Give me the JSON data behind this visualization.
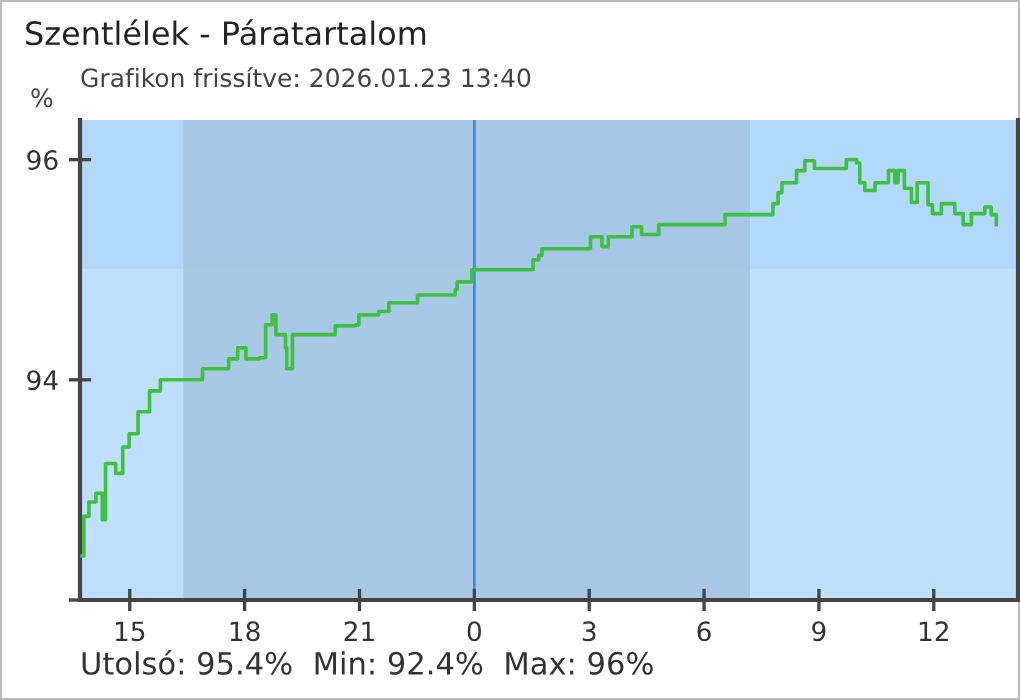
{
  "chart_data": {
    "type": "step",
    "title": "Szentlélek - Páratartalom",
    "subtitle": "Grafikon frissítve: 2026.01.23 13:40",
    "ylabel": "%",
    "annotations": [
      "Utolsó: 95.4%  Min: 92.4%  Max: 96%"
    ],
    "series": [
      {
        "color": "#40c040",
        "x": [
          "2026-01-22T13:45",
          "2026-01-22T13:48",
          "2026-01-22T13:56",
          "2026-01-22T14:07",
          "2026-01-22T14:17",
          "2026-01-22T14:22",
          "2026-01-22T14:38",
          "2026-01-22T14:49",
          "2026-01-22T14:59",
          "2026-01-22T15:13",
          "2026-01-22T15:31",
          "2026-01-22T15:48",
          "2026-01-22T16:49",
          "2026-01-22T16:54",
          "2026-01-22T17:35",
          "2026-01-22T17:49",
          "2026-01-22T18:02",
          "2026-01-22T18:23",
          "2026-01-22T18:33",
          "2026-01-22T18:43",
          "2026-01-22T18:49",
          "2026-01-22T19:04",
          "2026-01-22T19:06",
          "2026-01-22T19:15",
          "2026-01-22T20:17",
          "2026-01-22T20:22",
          "2026-01-22T20:54",
          "2026-01-22T20:59",
          "2026-01-22T21:30",
          "2026-01-22T21:46",
          "2026-01-22T22:31",
          "2026-01-22T23:30",
          "2026-01-22T23:33",
          "2026-01-22T23:56",
          "2026-01-23T01:30",
          "2026-01-23T01:32",
          "2026-01-23T01:41",
          "2026-01-23T01:46",
          "2026-01-23T02:59",
          "2026-01-23T03:02",
          "2026-01-23T03:20",
          "2026-01-23T03:30",
          "2026-01-23T04:02",
          "2026-01-23T04:07",
          "2026-01-23T04:22",
          "2026-01-23T04:43",
          "2026-01-23T04:49",
          "2026-01-23T06:17",
          "2026-01-23T06:33",
          "2026-01-23T07:41",
          "2026-01-23T07:48",
          "2026-01-23T07:56",
          "2026-01-23T08:02",
          "2026-01-23T08:22",
          "2026-01-23T08:25",
          "2026-01-23T08:38",
          "2026-01-23T08:53",
          "2026-01-23T09:40",
          "2026-01-23T09:43",
          "2026-01-23T09:59",
          "2026-01-23T10:04",
          "2026-01-23T10:12",
          "2026-01-23T10:28",
          "2026-01-23T10:49",
          "2026-01-23T10:59",
          "2026-01-23T11:04",
          "2026-01-23T11:14",
          "2026-01-23T11:25",
          "2026-01-23T11:34",
          "2026-01-23T11:51",
          "2026-01-23T11:58",
          "2026-01-23T12:12",
          "2026-01-23T12:33",
          "2026-01-23T12:46",
          "2026-01-23T12:59",
          "2026-01-23T13:20",
          "2026-01-23T13:30",
          "2026-01-23T13:38"
        ],
        "values": [
          92.4,
          92.76,
          92.89,
          92.97,
          92.73,
          93.24,
          93.15,
          93.39,
          93.51,
          93.71,
          93.9,
          94.0,
          94.0,
          94.1,
          94.19,
          94.29,
          94.19,
          94.2,
          94.5,
          94.59,
          94.41,
          94.29,
          94.1,
          94.41,
          94.41,
          94.49,
          94.5,
          94.59,
          94.62,
          94.7,
          94.77,
          94.82,
          94.89,
          95.0,
          95.0,
          95.09,
          95.13,
          95.19,
          95.19,
          95.3,
          95.21,
          95.3,
          95.3,
          95.39,
          95.32,
          95.32,
          95.41,
          95.41,
          95.5,
          95.5,
          95.6,
          95.7,
          95.79,
          95.79,
          95.9,
          95.99,
          95.92,
          95.92,
          96.0,
          95.97,
          95.79,
          95.72,
          95.79,
          95.9,
          95.79,
          95.9,
          95.74,
          95.61,
          95.79,
          95.59,
          95.51,
          95.6,
          95.51,
          95.41,
          95.51,
          95.57,
          95.5,
          95.41
        ]
      }
    ],
    "xlim": [
      "2026-01-22T13:42",
      "2026-01-23T14:12"
    ],
    "ylim": [
      92,
      96.36
    ],
    "xticks": [
      {
        "value": "2026-01-22T15:00",
        "label": "15"
      },
      {
        "value": "2026-01-22T18:00",
        "label": "18"
      },
      {
        "value": "2026-01-22T21:00",
        "label": "21"
      },
      {
        "value": "2026-01-23T00:00",
        "label": "0"
      },
      {
        "value": "2026-01-23T03:00",
        "label": "3"
      },
      {
        "value": "2026-01-23T06:00",
        "label": "6"
      },
      {
        "value": "2026-01-23T09:00",
        "label": "9"
      },
      {
        "value": "2026-01-23T12:00",
        "label": "12"
      }
    ],
    "yticks": [
      {
        "value": 92,
        "label": null
      },
      94,
      96
    ],
    "bands": [
      {
        "axis": "y",
        "from": 92,
        "to": 95,
        "color": "#bfe0fd"
      },
      {
        "axis": "y",
        "from": 95,
        "to": 96.36,
        "color": "#b2d8fc"
      },
      {
        "axis": "x",
        "from": "2026-01-22T16:24",
        "to": "2026-01-23T07:12",
        "color": "#a3c3df"
      }
    ],
    "ref_lines": [
      {
        "axis": "x",
        "value": "2026-01-23T00:00",
        "color": "#3f8fd0"
      }
    ],
    "grid": false,
    "legend": false
  }
}
